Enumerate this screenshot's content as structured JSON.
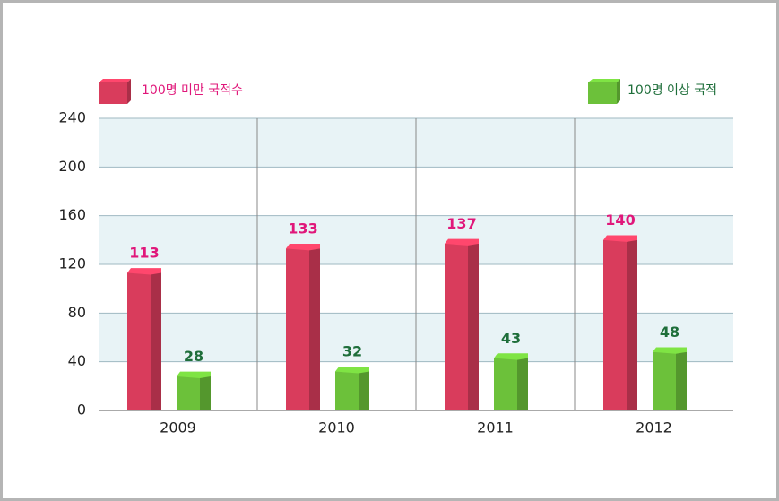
{
  "chart_data": {
    "type": "bar",
    "categories": [
      "2009",
      "2010",
      "2011",
      "2012"
    ],
    "series": [
      {
        "name": "100명 미만 국적수",
        "color": "#d93c5c",
        "label_color": "#e0177a",
        "values": [
          113,
          133,
          137,
          140
        ]
      },
      {
        "name": "100명 이상 국적",
        "color": "#6cc13a",
        "label_color": "#1e6e3a",
        "values": [
          28,
          32,
          43,
          48
        ]
      }
    ],
    "ylim": [
      0,
      240
    ],
    "yticks": [
      0,
      40,
      80,
      120,
      160,
      200,
      240
    ],
    "grid": true
  }
}
